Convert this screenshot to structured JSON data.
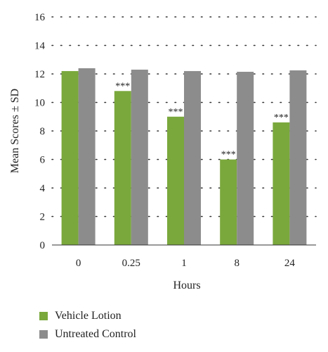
{
  "chart_data": {
    "type": "bar",
    "categories": [
      "0",
      "0.25",
      "1",
      "8",
      "24"
    ],
    "series": [
      {
        "name": "Vehicle Lotion",
        "values": [
          12.2,
          10.8,
          9.0,
          6.0,
          8.6
        ],
        "color": "#7aa83c"
      },
      {
        "name": "Untreated Control",
        "values": [
          12.4,
          12.3,
          12.2,
          12.15,
          12.25
        ],
        "color": "#8c8c8c"
      }
    ],
    "annotations": [
      "",
      "***",
      "***",
      "***",
      "***"
    ],
    "xlabel": "Hours",
    "ylabel": "Mean Scores ± SD",
    "ylim": [
      0,
      16
    ],
    "yticks": [
      0,
      2,
      4,
      6,
      8,
      10,
      12,
      14,
      16
    ],
    "grid": "dotted horizontal",
    "legend_placement": "bottom-left"
  }
}
